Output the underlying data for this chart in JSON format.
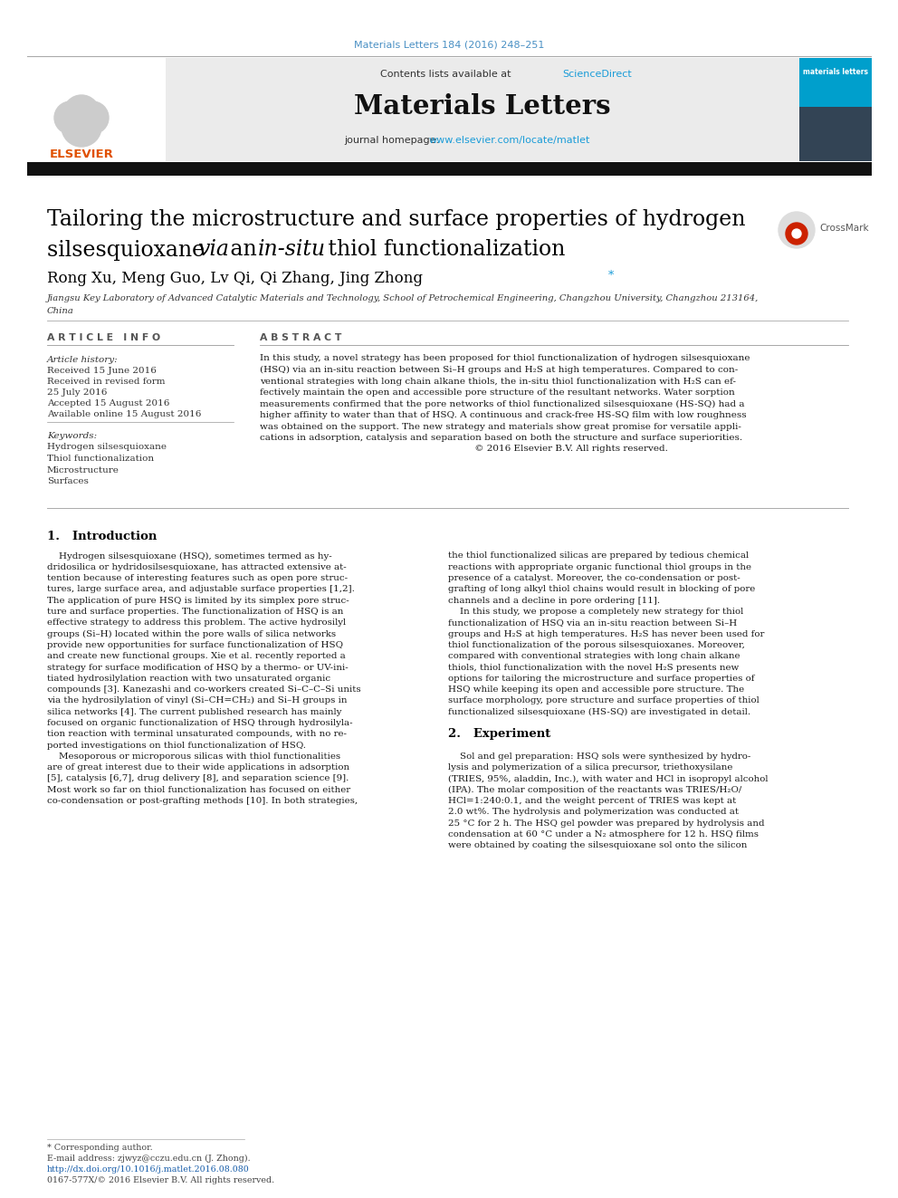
{
  "page_title": "Materials Letters 184 (2016) 248–251",
  "journal_name": "Materials Letters",
  "contents_text": "Contents lists available at ",
  "sciencedirect_text": "ScienceDirect",
  "journal_homepage_text": "journal homepage: ",
  "homepage_url": "www.elsevier.com/locate/matlet",
  "article_title_line1": "Tailoring the microstructure and surface properties of hydrogen",
  "article_title_line2": "silsesquioxane ",
  "article_title_via": "via",
  "article_title_an": " an ",
  "article_title_insitu": "in-situ",
  "article_title_rest": " thiol functionalization",
  "authors": "Rong Xu, Meng Guo, Lv Qi, Qi Zhang, Jing Zhong",
  "affiliation_line1": "Jiangsu Key Laboratory of Advanced Catalytic Materials and Technology, School of Petrochemical Engineering, Changzhou University, Changzhou 213164,",
  "affiliation_line2": "China",
  "article_info_header": "A R T I C L E   I N F O",
  "abstract_header": "A B S T R A C T",
  "article_history_label": "Article history:",
  "received_text": "Received 15 June 2016",
  "revised_text": "Received in revised form",
  "revised_date": "25 July 2016",
  "accepted_text": "Accepted 15 August 2016",
  "available_text": "Available online 15 August 2016",
  "keywords_label": "Keywords:",
  "keywords": [
    "Hydrogen silsesquioxane",
    "Thiol functionalization",
    "Microstructure",
    "Surfaces"
  ],
  "abstract_lines": [
    "In this study, a novel strategy has been proposed for thiol functionalization of hydrogen silsesquioxane",
    "(HSQ) via an in-situ reaction between Si–H groups and H₂S at high temperatures. Compared to con-",
    "ventional strategies with long chain alkane thiols, the in-situ thiol functionalization with H₂S can ef-",
    "fectively maintain the open and accessible pore structure of the resultant networks. Water sorption",
    "measurements confirmed that the pore networks of thiol functionalized silsesquioxane (HS-SQ) had a",
    "higher affinity to water than that of HSQ. A continuous and crack-free HS-SQ film with low roughness",
    "was obtained on the support. The new strategy and materials show great promise for versatile appli-",
    "cations in adsorption, catalysis and separation based on both the structure and surface superiorities.",
    "                                                                         © 2016 Elsevier B.V. All rights reserved."
  ],
  "section1_title": "1.   Introduction",
  "intro1_lines": [
    "    Hydrogen silsesquioxane (HSQ), sometimes termed as hy-",
    "dridosilica or hydridosilsesquioxane, has attracted extensive at-",
    "tention because of interesting features such as open pore struc-",
    "tures, large surface area, and adjustable surface properties [1,2].",
    "The application of pure HSQ is limited by its simplex pore struc-",
    "ture and surface properties. The functionalization of HSQ is an",
    "effective strategy to address this problem. The active hydrosilyl",
    "groups (Si–H) located within the pore walls of silica networks",
    "provide new opportunities for surface functionalization of HSQ",
    "and create new functional groups. Xie et al. recently reported a",
    "strategy for surface modification of HSQ by a thermo- or UV-ini-",
    "tiated hydrosilylation reaction with two unsaturated organic",
    "compounds [3]. Kanezashi and co-workers created Si–C–C–Si units",
    "via the hydrosilylation of vinyl (Si–CH=CH₂) and Si–H groups in",
    "silica networks [4]. The current published research has mainly",
    "focused on organic functionalization of HSQ through hydrosilyla-",
    "tion reaction with terminal unsaturated compounds, with no re-",
    "ported investigations on thiol functionalization of HSQ.",
    "    Mesoporous or microporous silicas with thiol functionalities",
    "are of great interest due to their wide applications in adsorption",
    "[5], catalysis [6,7], drug delivery [8], and separation science [9].",
    "Most work so far on thiol functionalization has focused on either",
    "co-condensation or post-grafting methods [10]. In both strategies,"
  ],
  "intro2_lines": [
    "the thiol functionalized silicas are prepared by tedious chemical",
    "reactions with appropriate organic functional thiol groups in the",
    "presence of a catalyst. Moreover, the co-condensation or post-",
    "grafting of long alkyl thiol chains would result in blocking of pore",
    "channels and a decline in pore ordering [11].",
    "    In this study, we propose a completely new strategy for thiol",
    "functionalization of HSQ via an in-situ reaction between Si–H",
    "groups and H₂S at high temperatures. H₂S has never been used for",
    "thiol functionalization of the porous silsesquioxanes. Moreover,",
    "compared with conventional strategies with long chain alkane",
    "thiols, thiol functionalization with the novel H₂S presents new",
    "options for tailoring the microstructure and surface properties of",
    "HSQ while keeping its open and accessible pore structure. The",
    "surface morphology, pore structure and surface properties of thiol",
    "functionalized silsesquioxane (HS-SQ) are investigated in detail.",
    "",
    "2.   Experiment",
    "",
    "    Sol and gel preparation: HSQ sols were synthesized by hydro-",
    "lysis and polymerization of a silica precursor, triethoxysilane",
    "(TRIES, 95%, aladdin, Inc.), with water and HCl in isopropyl alcohol",
    "(IPA). The molar composition of the reactants was TRIES/H₂O/",
    "HCl=1:240:0.1, and the weight percent of TRIES was kept at",
    "2.0 wt%. The hydrolysis and polymerization was conducted at",
    "25 °C for 2 h. The HSQ gel powder was prepared by hydrolysis and",
    "condensation at 60 °C under a N₂ atmosphere for 12 h. HSQ films",
    "were obtained by coating the silsesquioxane sol onto the silicon"
  ],
  "footnote_star": "* Corresponding author.",
  "footnote_email": "E-mail address: zjwyz@cczu.edu.cn (J. Zhong).",
  "footnote_doi": "http://dx.doi.org/10.1016/j.matlet.2016.08.080",
  "footnote_issn": "0167-577X/© 2016 Elsevier B.V. All rights reserved.",
  "header_bg_color": "#ebebeb",
  "sciencedirect_color": "#1a9cd8",
  "homepage_url_color": "#1a9cd8",
  "page_title_color": "#4a90c4",
  "black_bar_color": "#111111",
  "title_color": "#000000",
  "text_color": "#1a1a1a",
  "footnote_color": "#444444",
  "doi_color": "#1a5faa",
  "elsevier_orange": "#e05000"
}
